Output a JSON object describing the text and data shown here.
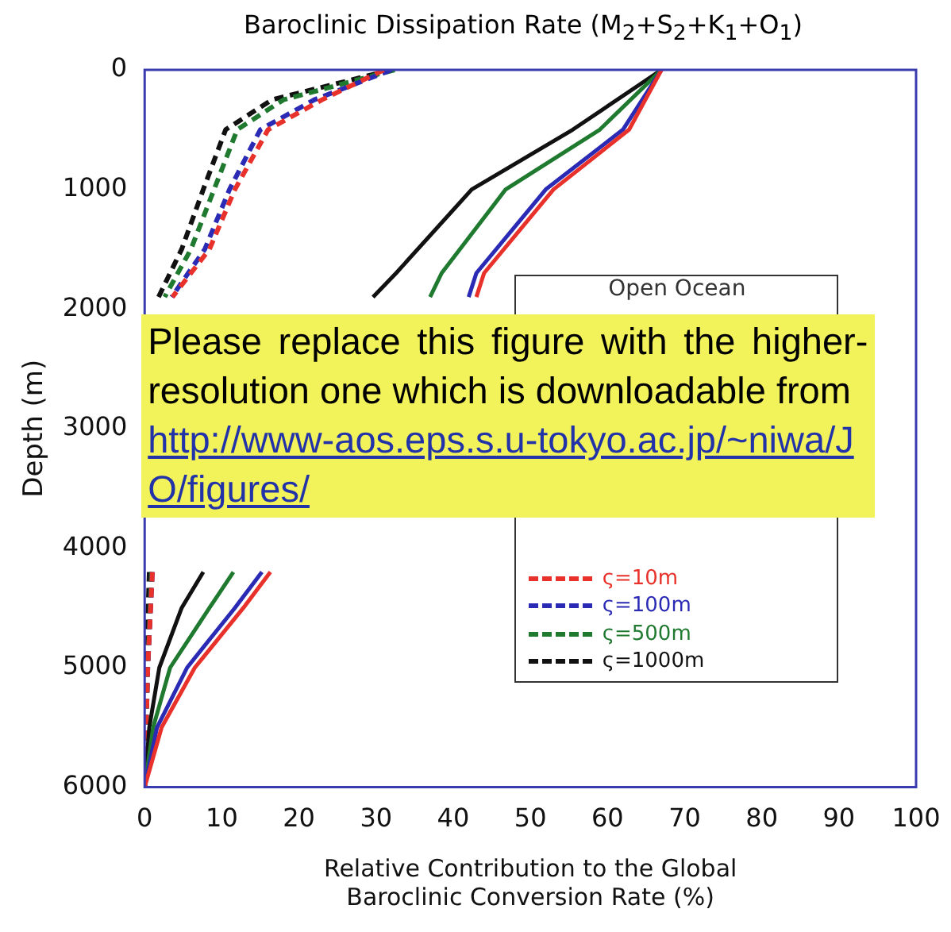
{
  "chart_data": {
    "type": "line",
    "title": "Baroclinic Dissipation Rate (M$_{2}$+S$_{2}$+K$_{1}$+O$_{1}$)",
    "xlabel": "Relative Contribution to the Global\nBaroclinic Conversion Rate (%)",
    "ylabel": "Depth (m)",
    "xlim": [
      0,
      100
    ],
    "xticks": [
      0,
      10,
      20,
      30,
      40,
      50,
      60,
      70,
      80,
      90,
      100
    ],
    "ylim": [
      6000,
      0
    ],
    "yticks": [
      0,
      1000,
      2000,
      3000,
      4000,
      5000,
      6000
    ],
    "grid": false,
    "legend": "bottom right",
    "legend_title": "Open Ocean",
    "line_style": "solid",
    "marker": "none",
    "annotations": [
      "Please replace this figure with the higher-resolution one which is downloadable from",
      "http://www-aos.eps.s.u-tokyo.ac.jp/~niwa/JO/figures/"
    ],
    "series": [
      {
        "color": "#e8312a",
        "x": [
          67,
          62.8,
          53,
          44,
          43,
          null,
          16.3,
          12.8,
          6.5,
          2.2,
          0
        ],
        "values": [
          0,
          500,
          1000,
          1700,
          1900,
          null,
          4200,
          4500,
          5000,
          5500,
          6000
        ]
      },
      {
        "color": "#2a2ab5",
        "x": [
          67,
          62,
          52,
          43,
          42,
          null,
          15.2,
          11.7,
          5.5,
          1.6,
          0
        ],
        "values": [
          0,
          500,
          1000,
          1700,
          1900,
          null,
          4200,
          4500,
          5000,
          5500,
          6000
        ]
      },
      {
        "color": "#1f7a2f",
        "x": [
          67,
          59,
          46.8,
          38.5,
          37,
          null,
          11.5,
          8.4,
          3.3,
          1.1,
          0
        ],
        "values": [
          0,
          500,
          1000,
          1700,
          1900,
          null,
          4200,
          4500,
          5000,
          5500,
          6000
        ]
      },
      {
        "color": "#111111",
        "x": [
          67,
          55.5,
          42.4,
          32.6,
          29.6,
          null,
          7.6,
          4.8,
          1.9,
          0.6,
          0
        ],
        "values": [
          0,
          500,
          1000,
          1700,
          1900,
          null,
          4200,
          4500,
          5000,
          5500,
          6000
        ]
      },
      {
        "name": "ς=10m",
        "color": "#e8312a",
        "line_style": "dashed",
        "x": [
          31,
          23,
          16,
          11.7,
          8.4,
          3.6,
          null,
          1,
          0.4,
          0
        ],
        "values": [
          0,
          250,
          500,
          1000,
          1500,
          1900,
          null,
          4200,
          5000,
          6000
        ]
      },
      {
        "name": "ς=100m",
        "color": "#2a2ab5",
        "line_style": "dashed",
        "x": [
          32,
          22,
          15,
          11,
          7.8,
          3.5,
          null,
          1,
          0.4,
          0
        ],
        "values": [
          0,
          250,
          500,
          1000,
          1500,
          1900,
          null,
          4200,
          5000,
          6000
        ]
      },
      {
        "name": "ς=500m",
        "color": "#1f7a2f",
        "line_style": "dashed",
        "x": [
          32.4,
          18,
          12,
          9,
          6,
          2.6,
          null,
          0.9,
          0.4,
          0
        ],
        "values": [
          0,
          250,
          500,
          1000,
          1500,
          1900,
          null,
          4200,
          5000,
          6000
        ]
      },
      {
        "name": "ς=1000m",
        "color": "#111111",
        "line_style": "dashed",
        "x": [
          32,
          16.5,
          10.5,
          7.6,
          4.8,
          1.8,
          null,
          0.6,
          0.2,
          0
        ],
        "values": [
          0,
          250,
          500,
          1000,
          1500,
          1900,
          null,
          4200,
          5000,
          6000
        ]
      }
    ]
  }
}
